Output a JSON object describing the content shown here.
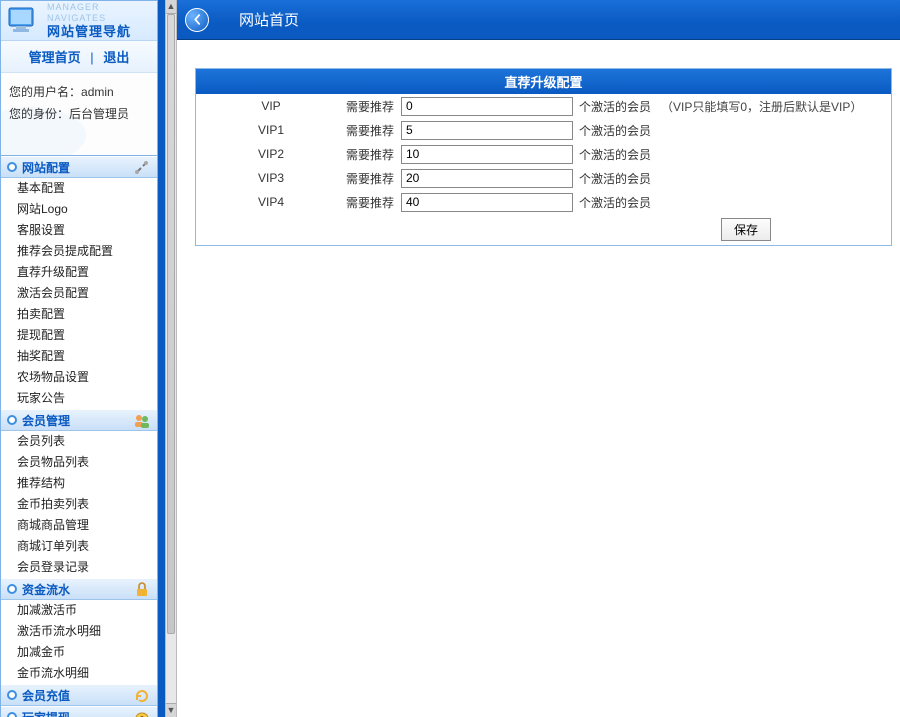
{
  "sidebar": {
    "logo": {
      "sub": "MANAGER NAVIGATES",
      "main": "网站管理导航"
    },
    "top_links": {
      "home": "管理首页",
      "logout": "退出"
    },
    "userinfo": {
      "line1_label": "您的用户名：",
      "line1_value": "admin",
      "line2_label": "您的身份：",
      "line2_value": "后台管理员"
    },
    "sections": [
      {
        "title": "网站配置",
        "icon": "tools",
        "items": [
          "基本配置",
          "网站Logo",
          "客服设置",
          "推荐会员提成配置",
          "直荐升级配置",
          "激活会员配置",
          "拍卖配置",
          "提现配置",
          "抽奖配置",
          "农场物品设置",
          "玩家公告"
        ]
      },
      {
        "title": "会员管理",
        "icon": "users",
        "items": [
          "会员列表",
          "会员物品列表",
          "推荐结构",
          "金币拍卖列表",
          "商城商品管理",
          "商城订单列表",
          "会员登录记录"
        ]
      },
      {
        "title": "资金流水",
        "icon": "lock",
        "items": [
          "加减激活币",
          "激活币流水明细",
          "加减金币",
          "金币流水明细"
        ]
      },
      {
        "title": "会员充值",
        "icon": "refresh",
        "items": []
      },
      {
        "title": "玩家提现",
        "icon": "coin",
        "items": []
      }
    ]
  },
  "topbar": {
    "title": "网站首页"
  },
  "panel": {
    "title": "直荐升级配置",
    "pre_label": "需要推荐",
    "post_label": "个激活的会员",
    "note": "（VIP只能填写0，注册后默认是VIP）",
    "save": "保存",
    "rows": [
      {
        "label": "VIP",
        "value": "0",
        "show_note": true
      },
      {
        "label": "VIP1",
        "value": "5",
        "show_note": false
      },
      {
        "label": "VIP2",
        "value": "10",
        "show_note": false
      },
      {
        "label": "VIP3",
        "value": "20",
        "show_note": false
      },
      {
        "label": "VIP4",
        "value": "40",
        "show_note": false
      }
    ]
  },
  "colors": {
    "primary": "#0a5ac2",
    "border": "#8fb9e3"
  }
}
